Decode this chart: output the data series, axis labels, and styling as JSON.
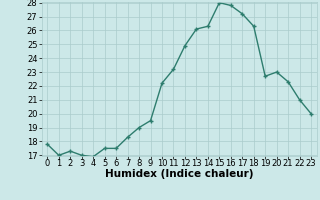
{
  "x": [
    0,
    1,
    2,
    3,
    4,
    5,
    6,
    7,
    8,
    9,
    10,
    11,
    12,
    13,
    14,
    15,
    16,
    17,
    18,
    19,
    20,
    21,
    22,
    23
  ],
  "y": [
    17.8,
    17.0,
    17.3,
    17.0,
    16.9,
    17.5,
    17.5,
    18.3,
    19.0,
    19.5,
    22.2,
    23.2,
    24.9,
    26.1,
    26.3,
    28.0,
    27.8,
    27.2,
    26.3,
    22.7,
    23.0,
    22.3,
    21.0,
    20.0
  ],
  "line_color": "#2e7d6e",
  "bg_color": "#cce8e8",
  "grid_color": "#aacccc",
  "xlabel": "Humidex (Indice chaleur)",
  "ylim": [
    17,
    28
  ],
  "xlim": [
    -0.5,
    23.5
  ],
  "yticks": [
    17,
    18,
    19,
    20,
    21,
    22,
    23,
    24,
    25,
    26,
    27,
    28
  ],
  "xticks": [
    0,
    1,
    2,
    3,
    4,
    5,
    6,
    7,
    8,
    9,
    10,
    11,
    12,
    13,
    14,
    15,
    16,
    17,
    18,
    19,
    20,
    21,
    22,
    23
  ],
  "marker": "+",
  "markersize": 3.5,
  "linewidth": 1.0,
  "xlabel_fontsize": 7.5,
  "tick_fontsize": 6.0
}
